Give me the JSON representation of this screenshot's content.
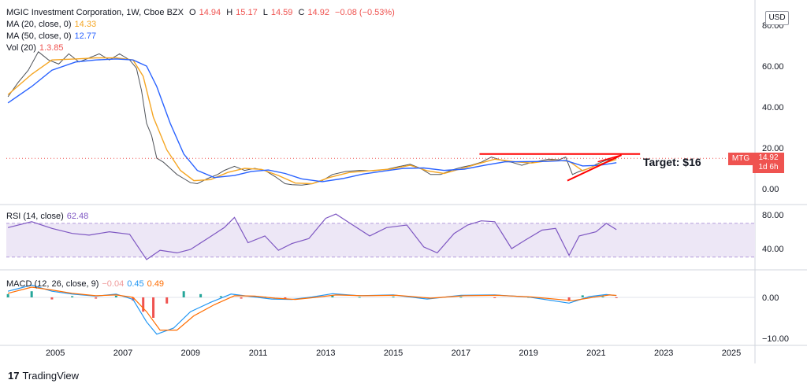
{
  "header": {
    "title": "MGIC Investment Corporation, 1W, Cboe BZX",
    "ohlc": [
      {
        "k": "O",
        "v": "14.94"
      },
      {
        "k": "H",
        "v": "15.17"
      },
      {
        "k": "L",
        "v": "14.59"
      },
      {
        "k": "C",
        "v": "14.92"
      }
    ],
    "change": "−0.08 (−0.53%)"
  },
  "legend": {
    "ma20": {
      "label": "MA (20, close, 0)",
      "value": "14.33"
    },
    "ma50": {
      "label": "MA (50, close, 0)",
      "value": "12.77"
    },
    "vol": {
      "label": "Vol (20)",
      "value": "1.3.85"
    },
    "rsi": {
      "label": "RSI (14, close)",
      "value": "62.48"
    },
    "macd": {
      "label": "MACD (12, 26, close, 9)",
      "values": [
        "−0.04",
        "0.45",
        "0.49"
      ]
    }
  },
  "currency": "USD",
  "price_tag": {
    "symbol": "MTG",
    "price": "14.92",
    "countdown": "1d 6h"
  },
  "annotation": "Target: $16",
  "branding": {
    "logo": "17",
    "name": "TradingView"
  },
  "colors": {
    "up": "#26a69a",
    "down": "#ef5350",
    "ma20": "#f5a623",
    "ma50": "#2962ff",
    "rsi": "#7e57c2",
    "rsi_band": "#ede7f6",
    "macd": "#2196f3",
    "signal": "#ff6d00",
    "annotation": "#ff0000"
  },
  "chart_data": [
    {
      "type": "line",
      "panel": "price",
      "y_ticks": [
        "80.00",
        "60.00",
        "40.00",
        "20.00",
        "0.00"
      ],
      "ylim": [
        -4,
        84
      ],
      "x_ticks": [
        "2005",
        "2007",
        "2009",
        "2011",
        "2013",
        "2015",
        "2017",
        "2019",
        "2021",
        "2023",
        "2025"
      ],
      "xlim": [
        2003.55,
        2025.7
      ],
      "close_series": [
        [
          2003.6,
          45
        ],
        [
          2003.9,
          52
        ],
        [
          2004.2,
          58
        ],
        [
          2004.5,
          67
        ],
        [
          2004.8,
          63
        ],
        [
          2005.1,
          61
        ],
        [
          2005.4,
          66
        ],
        [
          2005.7,
          62
        ],
        [
          2006.0,
          64
        ],
        [
          2006.3,
          66
        ],
        [
          2006.6,
          63
        ],
        [
          2006.9,
          66
        ],
        [
          2007.2,
          63
        ],
        [
          2007.4,
          59
        ],
        [
          2007.55,
          48
        ],
        [
          2007.7,
          32
        ],
        [
          2007.85,
          26
        ],
        [
          2008.0,
          15
        ],
        [
          2008.2,
          13
        ],
        [
          2008.4,
          10
        ],
        [
          2008.6,
          7
        ],
        [
          2008.8,
          5
        ],
        [
          2009.0,
          3
        ],
        [
          2009.2,
          2.5
        ],
        [
          2009.5,
          5
        ],
        [
          2009.8,
          7
        ],
        [
          2010.0,
          9
        ],
        [
          2010.3,
          11
        ],
        [
          2010.6,
          9
        ],
        [
          2010.9,
          10
        ],
        [
          2011.2,
          9
        ],
        [
          2011.5,
          6
        ],
        [
          2011.8,
          2.5
        ],
        [
          2012.0,
          2
        ],
        [
          2012.3,
          1.8
        ],
        [
          2012.6,
          2.5
        ],
        [
          2012.9,
          4
        ],
        [
          2013.2,
          7
        ],
        [
          2013.6,
          8.5
        ],
        [
          2014.0,
          9
        ],
        [
          2014.4,
          8.8
        ],
        [
          2014.8,
          9.5
        ],
        [
          2015.2,
          11
        ],
        [
          2015.5,
          12
        ],
        [
          2015.8,
          10
        ],
        [
          2016.1,
          7
        ],
        [
          2016.4,
          7
        ],
        [
          2016.7,
          9
        ],
        [
          2017.0,
          10.5
        ],
        [
          2017.3,
          11.5
        ],
        [
          2017.6,
          13
        ],
        [
          2017.9,
          15.5
        ],
        [
          2018.2,
          14
        ],
        [
          2018.5,
          13
        ],
        [
          2018.8,
          11.5
        ],
        [
          2019.0,
          12.5
        ],
        [
          2019.3,
          13.5
        ],
        [
          2019.6,
          14.5
        ],
        [
          2019.9,
          14.2
        ],
        [
          2020.1,
          15.5
        ],
        [
          2020.3,
          7
        ],
        [
          2020.5,
          8.5
        ],
        [
          2020.8,
          10
        ],
        [
          2021.0,
          12
        ],
        [
          2021.3,
          14
        ],
        [
          2021.6,
          14.92
        ]
      ],
      "series": [
        {
          "name": "MA (20, close, 0)",
          "values": [
            [
              2003.6,
              46
            ],
            [
              2004.3,
              56
            ],
            [
              2004.9,
              63
            ],
            [
              2005.6,
              63.5
            ],
            [
              2006.2,
              64
            ],
            [
              2006.8,
              64
            ],
            [
              2007.3,
              63
            ],
            [
              2007.6,
              55
            ],
            [
              2007.9,
              35
            ],
            [
              2008.3,
              19
            ],
            [
              2008.7,
              9
            ],
            [
              2009.1,
              4
            ],
            [
              2009.6,
              4.5
            ],
            [
              2010.1,
              8
            ],
            [
              2010.6,
              10
            ],
            [
              2011.1,
              9.5
            ],
            [
              2011.6,
              6.5
            ],
            [
              2012.1,
              2.8
            ],
            [
              2012.6,
              2.5
            ],
            [
              2013.1,
              5.5
            ],
            [
              2013.7,
              8
            ],
            [
              2014.3,
              8.8
            ],
            [
              2014.9,
              9.6
            ],
            [
              2015.5,
              11.5
            ],
            [
              2016.0,
              8.8
            ],
            [
              2016.5,
              7.5
            ],
            [
              2017.0,
              9.8
            ],
            [
              2017.5,
              12.2
            ],
            [
              2018.0,
              14.5
            ],
            [
              2018.6,
              13.2
            ],
            [
              2019.1,
              12.6
            ],
            [
              2019.7,
              14
            ],
            [
              2020.2,
              13.5
            ],
            [
              2020.6,
              8.8
            ],
            [
              2021.0,
              11.5
            ],
            [
              2021.6,
              14.33
            ]
          ]
        },
        {
          "name": "MA (50, close, 0)",
          "values": [
            [
              2003.6,
              42
            ],
            [
              2004.3,
              50
            ],
            [
              2004.9,
              58
            ],
            [
              2005.6,
              62
            ],
            [
              2006.2,
              63
            ],
            [
              2006.8,
              63.5
            ],
            [
              2007.3,
              63
            ],
            [
              2007.7,
              60
            ],
            [
              2008.0,
              50
            ],
            [
              2008.4,
              32
            ],
            [
              2008.8,
              17
            ],
            [
              2009.2,
              9
            ],
            [
              2009.7,
              5.5
            ],
            [
              2010.3,
              6.5
            ],
            [
              2010.8,
              8.5
            ],
            [
              2011.3,
              9.2
            ],
            [
              2011.8,
              7.5
            ],
            [
              2012.3,
              4.8
            ],
            [
              2012.9,
              3.5
            ],
            [
              2013.5,
              5
            ],
            [
              2014.1,
              7.2
            ],
            [
              2014.7,
              8.6
            ],
            [
              2015.3,
              10
            ],
            [
              2015.9,
              10.2
            ],
            [
              2016.5,
              9
            ],
            [
              2017.1,
              9.6
            ],
            [
              2017.7,
              11.5
            ],
            [
              2018.3,
              13.2
            ],
            [
              2018.9,
              13.3
            ],
            [
              2019.5,
              13.4
            ],
            [
              2020.1,
              13.8
            ],
            [
              2020.6,
              11.2
            ],
            [
              2021.1,
              11.5
            ],
            [
              2021.6,
              12.77
            ]
          ]
        }
      ],
      "annotations": {
        "horizontal_lines": [
          {
            "y": 17,
            "x": [
              2017.55,
              2022.3
            ]
          },
          {
            "y": 14.92,
            "x": [
              2003.55,
              2025.7
            ],
            "style": "dotted"
          }
        ],
        "rising_line": {
          "x": [
            2020.15,
            2021.75
          ],
          "y": [
            4,
            16.5
          ]
        },
        "target_arrow": {
          "x": [
            2021.75,
            2021.05
          ],
          "y": [
            16.5,
            13.2
          ]
        }
      }
    },
    {
      "type": "line",
      "panel": "rsi",
      "title": "RSI (14, close)",
      "y_ticks": [
        "80.00",
        "40.00"
      ],
      "ylim": [
        20,
        85
      ],
      "band": [
        30,
        70
      ],
      "values": [
        [
          2003.6,
          65
        ],
        [
          2004.3,
          72
        ],
        [
          2004.9,
          64
        ],
        [
          2005.5,
          58
        ],
        [
          2006.0,
          56
        ],
        [
          2006.6,
          60
        ],
        [
          2007.2,
          57
        ],
        [
          2007.7,
          27
        ],
        [
          2008.1,
          38
        ],
        [
          2008.6,
          35
        ],
        [
          2009.0,
          39
        ],
        [
          2009.5,
          52
        ],
        [
          2010.0,
          65
        ],
        [
          2010.3,
          77
        ],
        [
          2010.7,
          47
        ],
        [
          2011.2,
          55
        ],
        [
          2011.6,
          38
        ],
        [
          2012.0,
          46
        ],
        [
          2012.5,
          52
        ],
        [
          2013.0,
          76
        ],
        [
          2013.3,
          81
        ],
        [
          2013.8,
          68
        ],
        [
          2014.3,
          55
        ],
        [
          2014.8,
          65
        ],
        [
          2015.4,
          68
        ],
        [
          2015.9,
          42
        ],
        [
          2016.3,
          35
        ],
        [
          2016.8,
          58
        ],
        [
          2017.2,
          68
        ],
        [
          2017.6,
          73
        ],
        [
          2018.0,
          72
        ],
        [
          2018.5,
          40
        ],
        [
          2018.9,
          50
        ],
        [
          2019.4,
          62
        ],
        [
          2019.8,
          64
        ],
        [
          2020.2,
          32
        ],
        [
          2020.5,
          55
        ],
        [
          2021.0,
          60
        ],
        [
          2021.3,
          70
        ],
        [
          2021.6,
          62.48
        ]
      ]
    },
    {
      "type": "bar",
      "panel": "macd",
      "title": "MACD (12, 26, close, 9)",
      "y_ticks": [
        "0.00",
        "−10.00"
      ],
      "ylim": [
        -10.5,
        3.5
      ],
      "series": [
        {
          "name": "histogram",
          "values": [
            [
              2003.6,
              0.8
            ],
            [
              2004.3,
              1.5
            ],
            [
              2004.9,
              -0.5
            ],
            [
              2005.5,
              0.3
            ],
            [
              2006.2,
              -0.3
            ],
            [
              2006.8,
              0.4
            ],
            [
              2007.3,
              -0.8
            ],
            [
              2007.6,
              -3.5
            ],
            [
              2007.9,
              -5
            ],
            [
              2008.3,
              -1.5
            ],
            [
              2008.8,
              1.5
            ],
            [
              2009.3,
              0.8
            ],
            [
              2009.9,
              0.3
            ],
            [
              2010.5,
              -0.3
            ],
            [
              2011.2,
              0.2
            ],
            [
              2011.8,
              -0.3
            ],
            [
              2012.5,
              0.1
            ],
            [
              2013.2,
              0.4
            ],
            [
              2014.0,
              0.1
            ],
            [
              2015.0,
              0.2
            ],
            [
              2016.0,
              -0.2
            ],
            [
              2017.0,
              0.1
            ],
            [
              2018.0,
              -0.1
            ],
            [
              2019.0,
              0.1
            ],
            [
              2020.2,
              -0.9
            ],
            [
              2020.6,
              0.5
            ],
            [
              2021.2,
              0.2
            ],
            [
              2021.6,
              -0.04
            ]
          ]
        },
        {
          "name": "MACD",
          "values": [
            [
              2003.6,
              1.5
            ],
            [
              2004.3,
              3
            ],
            [
              2004.9,
              1.5
            ],
            [
              2005.5,
              0.8
            ],
            [
              2006.2,
              0.3
            ],
            [
              2006.8,
              0.8
            ],
            [
              2007.3,
              -0.5
            ],
            [
              2007.7,
              -6
            ],
            [
              2008.0,
              -9
            ],
            [
              2008.5,
              -7.5
            ],
            [
              2009.0,
              -3.5
            ],
            [
              2009.6,
              -1.2
            ],
            [
              2010.2,
              0.8
            ],
            [
              2010.8,
              0.2
            ],
            [
              2011.4,
              -0.4
            ],
            [
              2012.0,
              -0.5
            ],
            [
              2012.6,
              0.1
            ],
            [
              2013.2,
              0.9
            ],
            [
              2014.0,
              0.4
            ],
            [
              2015.0,
              0.6
            ],
            [
              2016.0,
              -0.4
            ],
            [
              2017.0,
              0.5
            ],
            [
              2018.0,
              0.6
            ],
            [
              2019.0,
              0.1
            ],
            [
              2020.2,
              -1.4
            ],
            [
              2020.8,
              0.2
            ],
            [
              2021.3,
              0.7
            ],
            [
              2021.6,
              0.45
            ]
          ]
        },
        {
          "name": "Signal",
          "values": [
            [
              2003.6,
              1
            ],
            [
              2004.3,
              2.5
            ],
            [
              2004.9,
              1.8
            ],
            [
              2005.5,
              1
            ],
            [
              2006.2,
              0.4
            ],
            [
              2006.8,
              0.6
            ],
            [
              2007.3,
              0
            ],
            [
              2007.7,
              -3.5
            ],
            [
              2008.1,
              -8
            ],
            [
              2008.6,
              -8
            ],
            [
              2009.1,
              -4.5
            ],
            [
              2009.7,
              -1.8
            ],
            [
              2010.3,
              0.4
            ],
            [
              2010.9,
              0.3
            ],
            [
              2011.5,
              -0.2
            ],
            [
              2012.1,
              -0.5
            ],
            [
              2012.7,
              0
            ],
            [
              2013.3,
              0.6
            ],
            [
              2014.1,
              0.4
            ],
            [
              2015.1,
              0.5
            ],
            [
              2016.1,
              -0.2
            ],
            [
              2017.1,
              0.4
            ],
            [
              2018.1,
              0.5
            ],
            [
              2019.1,
              0.1
            ],
            [
              2020.3,
              -0.8
            ],
            [
              2020.9,
              0
            ],
            [
              2021.4,
              0.6
            ],
            [
              2021.6,
              0.49
            ]
          ]
        }
      ]
    }
  ]
}
